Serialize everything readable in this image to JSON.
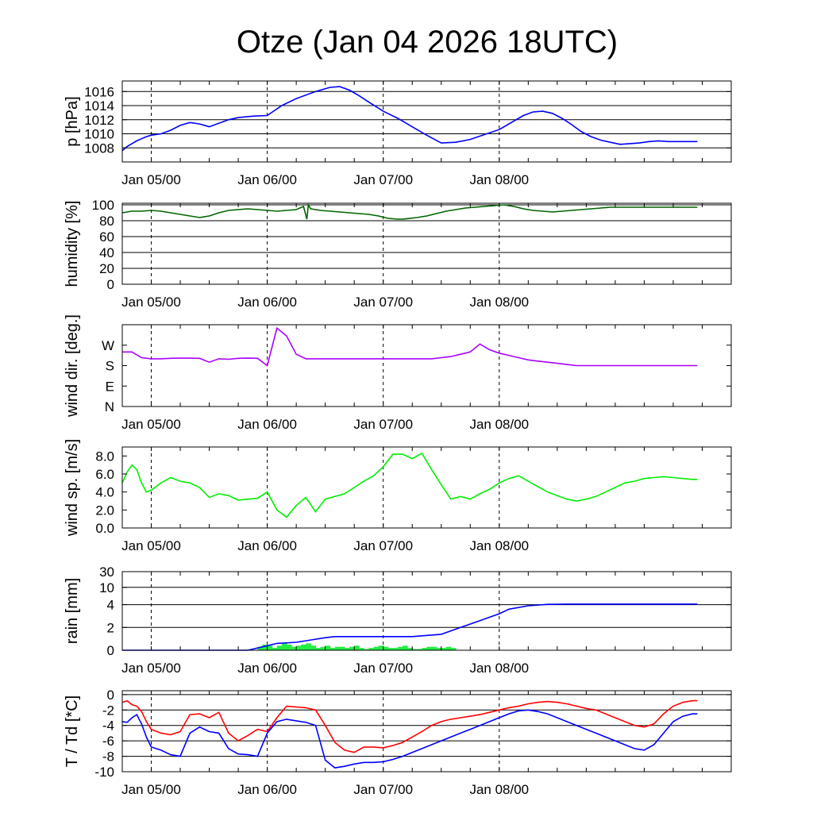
{
  "title": "Otze (Jan 04 2026 18UTC)",
  "chart_data": [
    {
      "type": "line",
      "ylabel": "p [hPa]",
      "yticks": [
        1008,
        1010,
        1012,
        1014,
        1016
      ],
      "ylim": [
        1006,
        1017.5
      ],
      "xticklabels": [
        "Jan 05/00",
        "Jan 06/00",
        "Jan 07/00",
        "Jan 08/00"
      ],
      "grid": "horizontal",
      "series": [
        {
          "color": "#0000ff",
          "x": [
            0,
            1,
            2,
            3,
            4,
            5,
            6,
            8,
            10,
            12,
            14,
            16,
            18,
            20,
            22,
            24,
            27,
            30,
            33,
            36,
            40,
            43,
            45,
            47,
            49,
            51,
            54,
            57,
            60,
            63,
            66,
            69,
            72,
            75,
            78,
            81,
            83,
            85,
            87,
            89,
            91,
            93,
            95,
            97,
            99,
            101,
            103,
            105,
            107,
            109,
            111,
            113,
            115,
            117,
            119
          ],
          "y": [
            1007.6,
            1008.2,
            1008.6,
            1009.0,
            1009.3,
            1009.6,
            1009.8,
            1010.0,
            1010.5,
            1011.2,
            1011.6,
            1011.4,
            1011.0,
            1011.5,
            1012.0,
            1012.3,
            1012.5,
            1012.6,
            1014.0,
            1015.0,
            1016.0,
            1016.6,
            1016.7,
            1016.2,
            1015.4,
            1014.5,
            1013.2,
            1012.2,
            1011.0,
            1009.8,
            1008.7,
            1008.8,
            1009.2,
            1009.9,
            1010.6,
            1011.8,
            1012.6,
            1013.1,
            1013.2,
            1012.9,
            1012.2,
            1011.3,
            1010.3,
            1009.6,
            1009.1,
            1008.8,
            1008.5,
            1008.6,
            1008.7,
            1008.9,
            1009.0,
            1008.9,
            1008.9,
            1008.9,
            1008.9
          ]
        }
      ]
    },
    {
      "type": "line",
      "ylabel": "humidity [%]",
      "yticks": [
        0,
        20,
        40,
        60,
        80,
        100
      ],
      "ylim": [
        0,
        102
      ],
      "xticklabels": [
        "Jan 05/00",
        "Jan 06/00",
        "Jan 07/00",
        "Jan 08/00"
      ],
      "grid": "horizontal",
      "series": [
        {
          "color": "#006400",
          "x": [
            0,
            2,
            4,
            6,
            8,
            10,
            12,
            14,
            16,
            18,
            20,
            22,
            24,
            26,
            28,
            30,
            32,
            34,
            36,
            37.5,
            38.2,
            38.5,
            39,
            41,
            43,
            45,
            47,
            49,
            51,
            53,
            55,
            57,
            58,
            61,
            63,
            65,
            67,
            69,
            71,
            73,
            75,
            77,
            79,
            81,
            83,
            85,
            87,
            89,
            91,
            93,
            95,
            97,
            99,
            101,
            103,
            105,
            107,
            109,
            111,
            113,
            115,
            117,
            119
          ],
          "y": [
            90,
            92,
            92,
            93,
            92,
            90,
            88,
            86,
            84,
            86,
            90,
            93,
            94,
            95,
            94,
            93,
            92,
            93,
            94,
            98,
            82,
            100,
            95,
            93,
            92,
            91,
            90,
            89,
            88,
            86,
            83,
            82,
            82,
            84,
            86,
            89,
            92,
            94,
            96,
            97,
            98,
            99,
            100,
            98,
            95,
            93,
            92,
            91,
            92,
            93,
            94,
            95,
            96,
            97,
            97,
            97,
            97,
            97,
            97,
            97,
            97,
            97,
            97
          ]
        }
      ]
    },
    {
      "type": "line",
      "ylabel": "wind dir. [deg.]",
      "yticks": [
        0,
        90,
        180,
        270
      ],
      "yticklabels": [
        "N",
        "E",
        "S",
        "W"
      ],
      "ylim": [
        0,
        360
      ],
      "xticklabels": [
        "Jan 05/00",
        "Jan 06/00",
        "Jan 07/00",
        "Jan 08/00"
      ],
      "grid": "none",
      "series": [
        {
          "color": "#aa00ff",
          "x": [
            0,
            2,
            4,
            6,
            8,
            10,
            12,
            14,
            16,
            18,
            20,
            22,
            24,
            26,
            28,
            30,
            32,
            34,
            36,
            38,
            40,
            42,
            44,
            46,
            48,
            50,
            52,
            54,
            56,
            58,
            60,
            62,
            64,
            66,
            68,
            70,
            72,
            74,
            76,
            78,
            80,
            82,
            84,
            86,
            88,
            90,
            92,
            94,
            96,
            98,
            100,
            102,
            104,
            106,
            108,
            110,
            112,
            114,
            116,
            118,
            119
          ],
          "y": [
            240,
            240,
            215,
            210,
            210,
            212,
            213,
            213,
            212,
            195,
            210,
            208,
            212,
            213,
            212,
            180,
            345,
            310,
            230,
            210,
            210,
            210,
            210,
            210,
            210,
            210,
            210,
            210,
            210,
            210,
            210,
            210,
            210,
            215,
            220,
            230,
            240,
            275,
            250,
            235,
            225,
            215,
            205,
            200,
            195,
            190,
            185,
            180,
            180,
            180,
            180,
            180,
            180,
            180,
            180,
            180,
            180,
            180,
            180,
            180,
            180
          ]
        }
      ]
    },
    {
      "type": "line",
      "ylabel": "wind sp. [m/s]",
      "yticks": [
        0.0,
        2.0,
        4.0,
        6.0,
        8.0
      ],
      "ylim": [
        0,
        9.0
      ],
      "xticklabels": [
        "Jan 05/00",
        "Jan 06/00",
        "Jan 07/00",
        "Jan 08/00"
      ],
      "grid": "none",
      "series": [
        {
          "color": "#00ee00",
          "x": [
            0,
            1,
            2,
            3,
            4,
            5,
            6,
            8,
            10,
            12,
            14,
            16,
            18,
            20,
            22,
            24,
            26,
            28,
            30,
            32,
            34,
            36,
            38,
            40,
            42,
            44,
            46,
            48,
            50,
            52,
            54,
            56,
            58,
            60,
            62,
            64,
            66,
            68,
            70,
            72,
            74,
            76,
            78,
            80,
            82,
            84,
            86,
            88,
            90,
            92,
            94,
            96,
            98,
            100,
            102,
            104,
            106,
            108,
            110,
            112,
            114,
            116,
            118,
            119
          ],
          "y": [
            5.0,
            6.2,
            7.0,
            6.5,
            5.0,
            4.0,
            4.2,
            5.0,
            5.6,
            5.2,
            5.0,
            4.5,
            3.4,
            3.8,
            3.6,
            3.1,
            3.2,
            3.3,
            4.0,
            2.0,
            1.2,
            2.5,
            3.4,
            1.8,
            3.2,
            3.5,
            3.8,
            4.5,
            5.2,
            5.8,
            6.8,
            8.2,
            8.2,
            7.7,
            8.3,
            6.5,
            4.8,
            3.2,
            3.5,
            3.2,
            3.8,
            4.3,
            5.0,
            5.5,
            5.8,
            5.2,
            4.6,
            4.0,
            3.6,
            3.2,
            3.0,
            3.2,
            3.5,
            4.0,
            4.5,
            5.0,
            5.2,
            5.5,
            5.6,
            5.7,
            5.6,
            5.5,
            5.4,
            5.4
          ]
        }
      ]
    },
    {
      "type": "line",
      "ylabel": "rain [mm]",
      "yticks": [
        0,
        2,
        4,
        10,
        30
      ],
      "ylim": [
        0,
        30
      ],
      "xticklabels": [
        "Jan 05/00",
        "Jan 06/00",
        "Jan 07/00",
        "Jan 08/00"
      ],
      "grid": "horizontal",
      "series": [
        {
          "color": "#0000ff",
          "x": [
            0,
            26,
            30,
            32,
            36,
            42,
            44,
            50,
            52,
            60,
            66,
            68,
            70,
            72,
            74,
            76,
            78,
            80,
            84,
            88,
            92,
            96,
            100,
            104,
            108,
            112,
            116,
            119
          ],
          "y": [
            0,
            0,
            0.4,
            0.6,
            0.7,
            1.1,
            1.2,
            1.2,
            1.2,
            1.2,
            1.4,
            1.7,
            2.0,
            2.3,
            2.6,
            2.9,
            3.2,
            3.6,
            3.9,
            4.1,
            4.2,
            4.2,
            4.2,
            4.2,
            4.2,
            4.2,
            4.2,
            4.2
          ]
        }
      ],
      "bars": {
        "color": "#22ee44",
        "x": [
          28,
          29,
          30,
          31,
          32,
          33,
          34,
          35,
          36,
          37,
          38,
          39,
          40,
          41,
          42,
          43,
          44,
          45,
          46,
          47,
          48,
          49,
          50,
          51,
          52,
          53,
          54,
          55,
          56,
          57,
          58,
          59,
          60,
          61,
          62,
          63,
          64,
          65,
          66,
          67,
          68
        ],
        "values": [
          0.3,
          0.5,
          0.4,
          0.2,
          0.4,
          0.6,
          0.5,
          0.3,
          0.4,
          0.5,
          0.6,
          0.4,
          0.2,
          0.3,
          0.4,
          0.2,
          0.3,
          0.3,
          0.2,
          0.3,
          0.4,
          0.2,
          0.1,
          0.2,
          0.3,
          0.4,
          0.3,
          0.2,
          0.2,
          0.3,
          0.4,
          0.2,
          0.1,
          0.1,
          0.2,
          0.3,
          0.3,
          0.2,
          0.2,
          0.3,
          0.2
        ]
      }
    },
    {
      "type": "line",
      "ylabel": "T / Td [*C]",
      "yticks": [
        -10,
        -8,
        -6,
        -4,
        -2,
        0
      ],
      "ylim": [
        -10,
        0.5
      ],
      "xticklabels": [
        "Jan 05/00",
        "Jan 06/00",
        "Jan 07/00",
        "Jan 08/00"
      ],
      "grid": "horizontal",
      "series": [
        {
          "color": "#ff0000",
          "x": [
            0,
            1,
            2,
            3,
            4,
            5,
            6,
            8,
            10,
            12,
            14,
            16,
            18,
            20,
            22,
            24,
            26,
            28,
            30,
            32,
            34,
            36,
            38,
            40,
            42,
            44,
            46,
            48,
            50,
            52,
            54,
            56,
            58,
            60,
            62,
            64,
            66,
            68,
            70,
            72,
            74,
            76,
            78,
            80,
            82,
            84,
            86,
            88,
            90,
            92,
            94,
            96,
            98,
            100,
            102,
            104,
            106,
            108,
            110,
            112,
            114,
            116,
            118,
            119
          ],
          "y": [
            -1.0,
            -0.8,
            -1.3,
            -1.5,
            -2.2,
            -3.5,
            -4.5,
            -5.0,
            -5.2,
            -4.8,
            -2.6,
            -2.5,
            -3.0,
            -2.3,
            -5.0,
            -6.0,
            -5.3,
            -4.5,
            -4.8,
            -3.0,
            -1.5,
            -1.6,
            -1.7,
            -2.0,
            -4.0,
            -6.2,
            -7.2,
            -7.5,
            -6.8,
            -6.8,
            -6.9,
            -6.6,
            -6.2,
            -5.5,
            -4.8,
            -4.0,
            -3.5,
            -3.2,
            -3.0,
            -2.8,
            -2.6,
            -2.3,
            -2.0,
            -1.7,
            -1.5,
            -1.2,
            -1.0,
            -0.9,
            -1.0,
            -1.2,
            -1.5,
            -1.8,
            -2.0,
            -2.5,
            -3.0,
            -3.5,
            -4.0,
            -4.2,
            -3.8,
            -2.5,
            -1.5,
            -1.0,
            -0.8,
            -0.8
          ]
        },
        {
          "color": "#0000ff",
          "x": [
            0,
            1,
            2,
            3,
            4,
            5,
            6,
            8,
            10,
            12,
            14,
            16,
            18,
            20,
            22,
            24,
            26,
            28,
            30,
            32,
            34,
            36,
            38,
            40,
            42,
            44,
            46,
            48,
            50,
            52,
            54,
            56,
            58,
            60,
            62,
            64,
            66,
            68,
            70,
            72,
            74,
            76,
            78,
            80,
            82,
            84,
            86,
            88,
            90,
            92,
            94,
            96,
            98,
            100,
            102,
            104,
            106,
            108,
            110,
            112,
            114,
            116,
            118,
            119
          ],
          "y": [
            -3.5,
            -3.6,
            -3.0,
            -2.6,
            -3.8,
            -5.5,
            -6.8,
            -7.2,
            -7.8,
            -8.0,
            -5.0,
            -4.2,
            -4.8,
            -5.0,
            -7.0,
            -7.7,
            -7.8,
            -8.0,
            -5.0,
            -3.5,
            -3.2,
            -3.4,
            -3.6,
            -4.0,
            -8.5,
            -9.5,
            -9.3,
            -9.0,
            -8.8,
            -8.8,
            -8.7,
            -8.4,
            -8.0,
            -7.5,
            -7.0,
            -6.5,
            -6.0,
            -5.5,
            -5.0,
            -4.5,
            -4.0,
            -3.5,
            -3.0,
            -2.5,
            -2.1,
            -2.0,
            -2.2,
            -2.5,
            -3.0,
            -3.5,
            -4.0,
            -4.5,
            -5.0,
            -5.5,
            -6.0,
            -6.5,
            -7.0,
            -7.2,
            -6.5,
            -5.0,
            -3.5,
            -2.8,
            -2.5,
            -2.5
          ]
        }
      ]
    }
  ]
}
